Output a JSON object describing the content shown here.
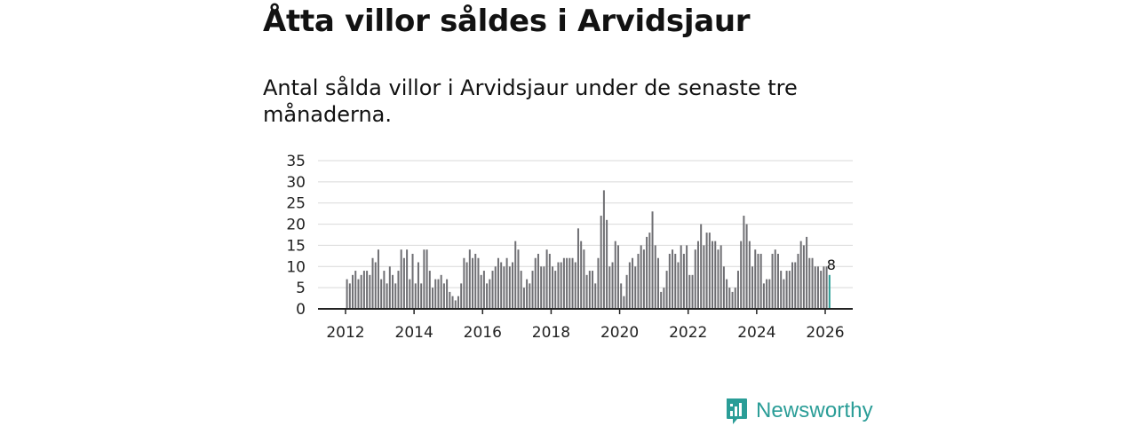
{
  "header": {
    "title": "Åtta villor såldes i Arvidsjaur",
    "subtitle": "Antal sålda villor i Arvidsjaur under de senaste tre månaderna."
  },
  "brand": {
    "name": "Newsworthy",
    "color": "#2a9d97",
    "icon": "bar-chart-logo-icon"
  },
  "chart_data": {
    "type": "bar",
    "title": "Åtta villor såldes i Arvidsjaur",
    "xlabel": "",
    "ylabel": "",
    "ylim": [
      0,
      35
    ],
    "yticks": [
      "0",
      "5",
      "10",
      "15",
      "20",
      "25",
      "30",
      "35"
    ],
    "xticks": [
      "2012",
      "2014",
      "2016",
      "2018",
      "2020",
      "2022",
      "2024",
      "2026"
    ],
    "grid": true,
    "bar_color": "#6f6f73",
    "highlight_color": "#2a9d97",
    "x_start": 2012.0,
    "x_end": 2026.0,
    "step_years": 0.0833333,
    "highlight_label": "8",
    "values": [
      7,
      6,
      8,
      9,
      7,
      8,
      9,
      9,
      8,
      12,
      11,
      14,
      7,
      9,
      6,
      10,
      8,
      6,
      9,
      14,
      12,
      14,
      7,
      13,
      6,
      11,
      6,
      14,
      14,
      9,
      5,
      7,
      7,
      8,
      6,
      7,
      4,
      3,
      2,
      3,
      6,
      12,
      11,
      14,
      12,
      13,
      12,
      8,
      9,
      6,
      7,
      9,
      10,
      12,
      11,
      10,
      12,
      10,
      11,
      16,
      14,
      9,
      5,
      7,
      6,
      9,
      12,
      13,
      10,
      10,
      14,
      13,
      10,
      9,
      11,
      11,
      12,
      12,
      12,
      12,
      11,
      19,
      16,
      14,
      8,
      9,
      9,
      6,
      12,
      22,
      28,
      21,
      10,
      11,
      16,
      15,
      6,
      3,
      8,
      11,
      12,
      10,
      13,
      15,
      14,
      17,
      18,
      23,
      15,
      12,
      4,
      5,
      9,
      13,
      14,
      13,
      11,
      15,
      13,
      15,
      8,
      8,
      14,
      16,
      20,
      15,
      18,
      18,
      16,
      16,
      14,
      15,
      10,
      7,
      5,
      4,
      5,
      9,
      16,
      22,
      20,
      16,
      10,
      14,
      13,
      13,
      6,
      7,
      7,
      13,
      14,
      13,
      9,
      7,
      9,
      9,
      11,
      11,
      13,
      16,
      15,
      17,
      12,
      12,
      10,
      10,
      9,
      10,
      10,
      8
    ]
  }
}
